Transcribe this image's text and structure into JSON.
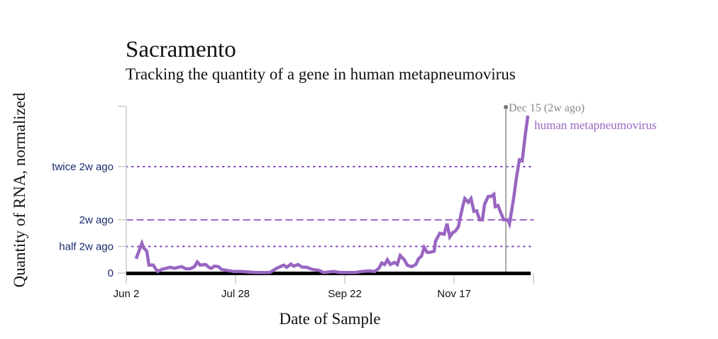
{
  "chart_data": {
    "type": "line",
    "title": "Sacramento",
    "subtitle": "Tracking the quantity of a gene in human metapneumovirus",
    "xlabel": "Date of Sample",
    "ylabel": "Quantity of RNA, normalized",
    "x_unit": "days since Jun 2",
    "x_ticks": [
      {
        "day": 0,
        "label": "Jun 2"
      },
      {
        "day": 56,
        "label": "Jul 28"
      },
      {
        "day": 112,
        "label": "Sep 22"
      },
      {
        "day": 168,
        "label": "Nov 17"
      }
    ],
    "xlim": [
      0,
      209
    ],
    "ylim": [
      0,
      3.13
    ],
    "y_ticks": [
      {
        "value": 0,
        "label": "0"
      },
      {
        "value": 0.5,
        "label": "half 2w ago"
      },
      {
        "value": 1,
        "label": "2w ago"
      },
      {
        "value": 2,
        "label": "twice 2w ago"
      }
    ],
    "reference": {
      "day": 196,
      "label": "Dec 15 (2w ago)",
      "color": "#aaaaaa"
    },
    "series": [
      {
        "name": "human metapneumovirus",
        "color": "#9966c2",
        "points": [
          [
            5,
            0.27
          ],
          [
            8,
            0.56
          ],
          [
            9,
            0.47
          ],
          [
            10.5,
            0.41
          ],
          [
            11.6,
            0.15
          ],
          [
            13.8,
            0.15
          ],
          [
            16,
            0.03
          ],
          [
            18.2,
            0.07
          ],
          [
            20.4,
            0.09
          ],
          [
            22.5,
            0.11
          ],
          [
            24.7,
            0.09
          ],
          [
            26.9,
            0.11
          ],
          [
            28.4,
            0.12
          ],
          [
            30.5,
            0.08
          ],
          [
            32.7,
            0.08
          ],
          [
            34.9,
            0.12
          ],
          [
            36.4,
            0.21
          ],
          [
            37.8,
            0.15
          ],
          [
            40.7,
            0.16
          ],
          [
            42.2,
            0.11
          ],
          [
            43.6,
            0.09
          ],
          [
            45.1,
            0.13
          ],
          [
            47.3,
            0.12
          ],
          [
            48.7,
            0.07
          ],
          [
            51.6,
            0.05
          ],
          [
            55.3,
            0.03
          ],
          [
            58.9,
            0.03
          ],
          [
            66.2,
            0.01
          ],
          [
            73.5,
            0.01
          ],
          [
            77.1,
            0.09
          ],
          [
            80.7,
            0.15
          ],
          [
            82.2,
            0.11
          ],
          [
            84.4,
            0.17
          ],
          [
            85.8,
            0.13
          ],
          [
            88,
            0.16
          ],
          [
            90.2,
            0.11
          ],
          [
            92.4,
            0.11
          ],
          [
            95.3,
            0.07
          ],
          [
            98.9,
            0.05
          ],
          [
            101.1,
            0.01
          ],
          [
            106.2,
            0.03
          ],
          [
            109.8,
            0.01
          ],
          [
            117.1,
            0.01
          ],
          [
            120.7,
            0.03
          ],
          [
            124.4,
            0.04
          ],
          [
            127.3,
            0.03
          ],
          [
            129.5,
            0.09
          ],
          [
            130.9,
            0.19
          ],
          [
            132.4,
            0.16
          ],
          [
            133.8,
            0.25
          ],
          [
            135.3,
            0.16
          ],
          [
            137.5,
            0.2
          ],
          [
            138.9,
            0.16
          ],
          [
            140.4,
            0.33
          ],
          [
            142.5,
            0.25
          ],
          [
            144,
            0.15
          ],
          [
            146.2,
            0.12
          ],
          [
            148.4,
            0.16
          ],
          [
            149.8,
            0.27
          ],
          [
            151.3,
            0.32
          ],
          [
            152.7,
            0.48
          ],
          [
            154.2,
            0.39
          ],
          [
            155.6,
            0.39
          ],
          [
            157.8,
            0.41
          ],
          [
            158.5,
            0.6
          ],
          [
            160.7,
            0.75
          ],
          [
            162.9,
            0.73
          ],
          [
            164.4,
            0.93
          ],
          [
            165.8,
            0.68
          ],
          [
            167.3,
            0.76
          ],
          [
            168.7,
            0.79
          ],
          [
            170.2,
            0.87
          ],
          [
            172.4,
            1.25
          ],
          [
            173.5,
            1.4
          ],
          [
            175.3,
            1.33
          ],
          [
            176.7,
            1.4
          ],
          [
            178.2,
            1.16
          ],
          [
            179.6,
            1.17
          ],
          [
            181.1,
            1.0
          ],
          [
            182.5,
            1.0
          ],
          [
            183.6,
            1.29
          ],
          [
            185.5,
            1.44
          ],
          [
            186.9,
            1.44
          ],
          [
            188.4,
            1.48
          ],
          [
            189.1,
            1.25
          ],
          [
            190.5,
            1.27
          ],
          [
            192,
            1.13
          ],
          [
            193.5,
            1.0
          ],
          [
            195.6,
            1.0
          ],
          [
            196.4,
            0.93
          ],
          [
            198.5,
            1.4
          ],
          [
            200,
            1.8
          ],
          [
            201.5,
            2.13
          ],
          [
            202.9,
            2.11
          ],
          [
            204.4,
            2.57
          ],
          [
            205.8,
            2.96
          ]
        ]
      }
    ]
  }
}
